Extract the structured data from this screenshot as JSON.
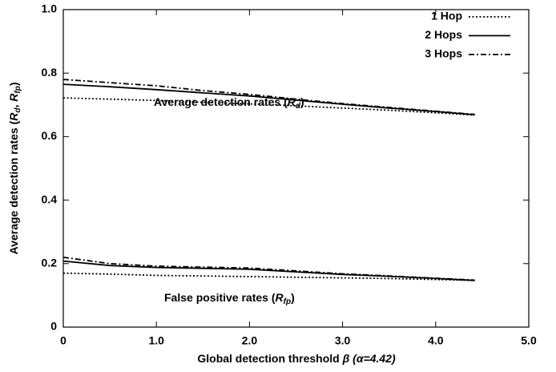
{
  "chart_data": {
    "type": "line",
    "x_label": [
      "Global detection threshold ",
      "β",
      " (α=4.42)"
    ],
    "y_label": [
      "Average detection rates (",
      "R",
      "d",
      ", ",
      "R",
      "fp",
      ")"
    ],
    "annotations": [
      [
        "Average detection rates (",
        "R",
        "d",
        ")"
      ],
      [
        "False positive rates (",
        "R",
        "fp",
        ")"
      ]
    ],
    "x": [
      0,
      0.5,
      1.0,
      1.5,
      2.0,
      2.5,
      3.0,
      3.5,
      4.0,
      4.42
    ],
    "series": [
      {
        "name": "1 Hop",
        "color": "#000000",
        "style": "dotted",
        "values": [
          0.722,
          0.718,
          0.714,
          0.708,
          0.703,
          0.697,
          0.69,
          0.683,
          0.675,
          0.668
        ]
      },
      {
        "name": "2 Hops",
        "color": "#000000",
        "style": "solid",
        "values": [
          0.765,
          0.757,
          0.748,
          0.738,
          0.728,
          0.715,
          0.702,
          0.69,
          0.679,
          0.669
        ]
      },
      {
        "name": "3 Hops",
        "color": "#000000",
        "style": "dashdot",
        "values": [
          0.78,
          0.77,
          0.76,
          0.745,
          0.733,
          0.718,
          0.704,
          0.692,
          0.68,
          0.67
        ]
      },
      {
        "color": "#000000",
        "style": "dotted",
        "values": [
          0.17,
          0.167,
          0.163,
          0.161,
          0.159,
          0.157,
          0.155,
          0.153,
          0.15,
          0.147
        ]
      },
      {
        "color": "#000000",
        "style": "solid",
        "values": [
          0.208,
          0.194,
          0.188,
          0.185,
          0.182,
          0.174,
          0.166,
          0.16,
          0.153,
          0.147
        ]
      },
      {
        "color": "#000000",
        "style": "dashdot",
        "values": [
          0.22,
          0.2,
          0.192,
          0.189,
          0.186,
          0.177,
          0.168,
          0.161,
          0.154,
          0.148
        ]
      }
    ],
    "xlim": [
      0,
      5
    ],
    "xticks": [
      0,
      {
        "value": 1,
        "label": "1.0"
      },
      {
        "value": 2,
        "label": "2.0"
      },
      {
        "value": 3,
        "label": "3.0"
      },
      {
        "value": 4,
        "label": "4.0"
      },
      {
        "value": 5,
        "label": "5.0"
      }
    ],
    "ylim": [
      0,
      1
    ],
    "yticks": [
      0,
      0.2,
      0.4,
      0.6,
      0.8,
      {
        "value": 1,
        "label": "1.0"
      }
    ],
    "legend": "upper right"
  }
}
